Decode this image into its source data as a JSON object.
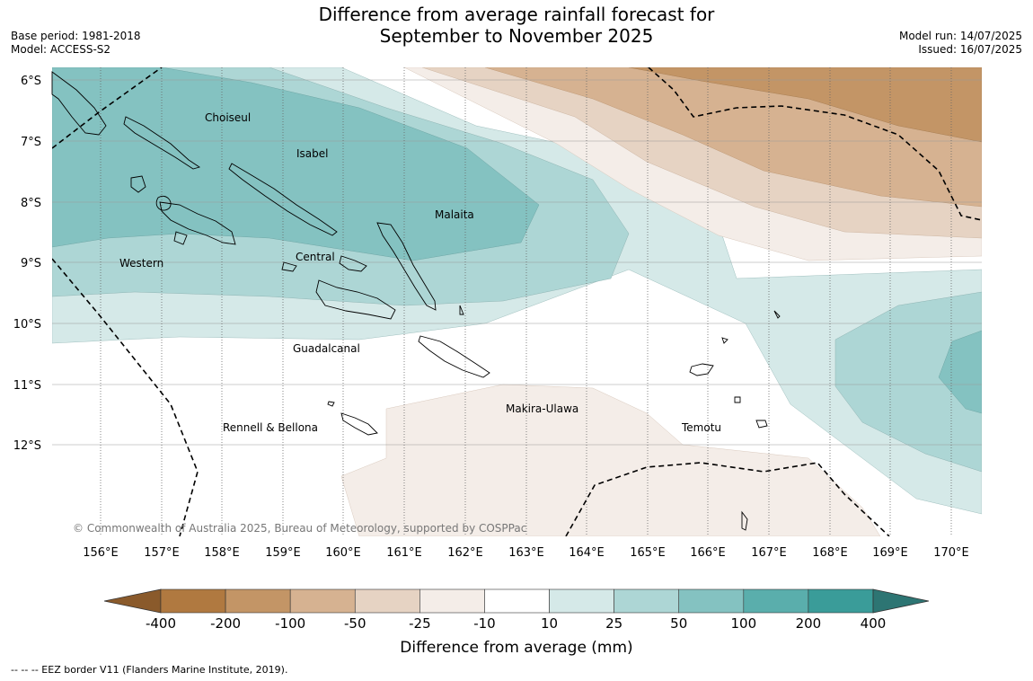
{
  "header": {
    "title_line1": "Difference from average rainfall forecast for",
    "title_line2": "September to November 2025",
    "base_period": "Base period: 1981-2018",
    "model": "Model: ACCESS-S2",
    "model_run": "Model run: 14/07/2025",
    "issued": "Issued: 16/07/2025"
  },
  "map": {
    "lat_labels": [
      "6°S",
      "7°S",
      "8°S",
      "9°S",
      "10°S",
      "11°S",
      "12°S"
    ],
    "lon_labels": [
      "156°E",
      "157°E",
      "158°E",
      "159°E",
      "160°E",
      "161°E",
      "162°E",
      "163°E",
      "164°E",
      "165°E",
      "166°E",
      "167°E",
      "168°E",
      "169°E",
      "170°E"
    ],
    "places": {
      "choiseul": "Choiseul",
      "isabel": "Isabel",
      "malaita": "Malaita",
      "western": "Western",
      "central": "Central",
      "guadalcanal": "Guadalcanal",
      "makira": "Makira-Ulawa",
      "rennell": "Rennell & Bellona",
      "temotu": "Temotu"
    },
    "copyright": "© Commonwealth of Australia 2025, Bureau of Meteorology, supported by COSPPac"
  },
  "colorbar": {
    "ticks": [
      "-400",
      "-200",
      "-100",
      "-50",
      "-25",
      "-10",
      "10",
      "25",
      "50",
      "100",
      "200",
      "400"
    ],
    "colors": [
      "#8a5a2b",
      "#b07940",
      "#c39566",
      "#d6b291",
      "#e6d3c3",
      "#f4ede8",
      "#ffffff",
      "#d5e9e8",
      "#add6d5",
      "#84c2c1",
      "#5aaeac",
      "#3a9c99",
      "#2d7573"
    ],
    "label": "Difference from average (mm)"
  },
  "footnote": "--  --  -- EEZ border V11 (Flanders Marine Institute, 2019)."
}
